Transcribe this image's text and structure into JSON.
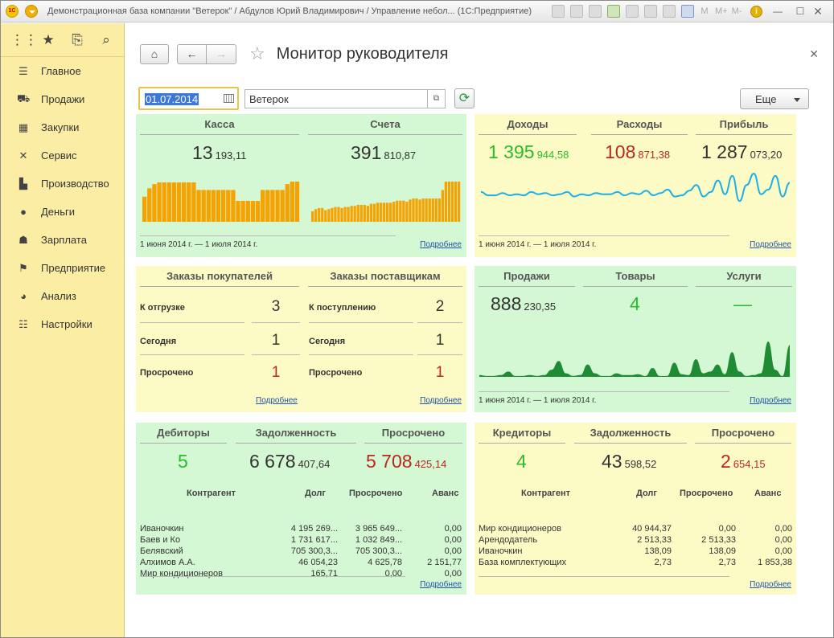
{
  "window": {
    "title": "Демонстрационная база компании \"Ветерок\" / Абдулов Юрий Владимирович / Управление небол... (1С:Предприятие)",
    "logo": "1С",
    "m_buttons": [
      "M",
      "M+",
      "M-"
    ]
  },
  "sidebar": {
    "top_icons": [
      "apps-icon",
      "star-icon",
      "history-icon",
      "search-icon"
    ],
    "items": [
      {
        "label": "Главное",
        "icon": "menu-icon"
      },
      {
        "label": "Продажи",
        "icon": "basket-icon"
      },
      {
        "label": "Закупки",
        "icon": "cart-icon"
      },
      {
        "label": "Сервис",
        "icon": "tools-icon"
      },
      {
        "label": "Производство",
        "icon": "factory-icon"
      },
      {
        "label": "Деньги",
        "icon": "ruble-icon"
      },
      {
        "label": "Зарплата",
        "icon": "people-icon"
      },
      {
        "label": "Предприятие",
        "icon": "flag-icon"
      },
      {
        "label": "Анализ",
        "icon": "pie-icon"
      },
      {
        "label": "Настройки",
        "icon": "settings-icon"
      }
    ]
  },
  "page": {
    "title": "Монитор руководителя"
  },
  "toolbar": {
    "date": "01.07.2014",
    "organization": "Ветерок",
    "more_label": "Еще"
  },
  "common": {
    "period": "1 июня 2014 г. — 1 июля 2014 г.",
    "details": "Подробнее"
  },
  "cash": {
    "kassa": {
      "title": "Касса",
      "int": "13",
      "frac": "193,11"
    },
    "accounts": {
      "title": "Счета",
      "int": "391",
      "frac": "810,87"
    },
    "kassa_bars": [
      30,
      40,
      45,
      47,
      47,
      47,
      47,
      47,
      47,
      47,
      47,
      38,
      38,
      38,
      38,
      38,
      38,
      38,
      38,
      25,
      25,
      25,
      25,
      25,
      38,
      38,
      38,
      38,
      38,
      45,
      48,
      48
    ],
    "accounts_bars": [
      10,
      12,
      13,
      13,
      11,
      12,
      13,
      14,
      14,
      13,
      14,
      14,
      15,
      15,
      16,
      16,
      16,
      15,
      17,
      17,
      18,
      18,
      18,
      18,
      18,
      19,
      20,
      20,
      20,
      19,
      21,
      22,
      22,
      21,
      22,
      22,
      22,
      22,
      22,
      22,
      30,
      38,
      38,
      38,
      38,
      38
    ]
  },
  "finance": {
    "income": {
      "title": "Доходы",
      "int": "1 395",
      "frac": "944,58"
    },
    "expense": {
      "title": "Расходы",
      "int": "108",
      "frac": "871,38"
    },
    "profit": {
      "title": "Прибыль",
      "int": "1 287",
      "frac": "073,20"
    },
    "line": [
      12,
      9,
      9,
      11,
      9,
      10,
      9,
      12,
      10,
      11,
      9,
      10,
      12,
      8,
      10,
      9,
      11,
      10,
      10,
      12,
      9,
      11,
      10,
      13,
      9,
      11,
      14,
      8,
      9,
      13,
      18,
      8,
      12,
      22,
      10,
      26,
      4,
      18,
      28,
      10,
      14,
      26,
      8,
      20
    ]
  },
  "orders": {
    "customers": {
      "title": "Заказы покупателей",
      "rows": [
        {
          "label": "К отгрузке",
          "value": "3"
        },
        {
          "label": "Сегодня",
          "value": "1"
        },
        {
          "label": "Просрочено",
          "value": "1"
        }
      ]
    },
    "suppliers": {
      "title": "Заказы поставщикам",
      "rows": [
        {
          "label": "К поступлению",
          "value": "2"
        },
        {
          "label": "Сегодня",
          "value": "1"
        },
        {
          "label": "Просрочено",
          "value": "1"
        }
      ]
    }
  },
  "sales": {
    "sales": {
      "title": "Продажи",
      "int": "888",
      "frac": "230,35"
    },
    "goods": {
      "title": "Товары",
      "value": "4"
    },
    "services": {
      "title": "Услуги",
      "value": "—"
    },
    "area": [
      2,
      1,
      1,
      2,
      6,
      1,
      1,
      2,
      1,
      2,
      8,
      18,
      4,
      1,
      2,
      14,
      4,
      1,
      1,
      4,
      2,
      2,
      3,
      1,
      10,
      1,
      1,
      16,
      3,
      2,
      20,
      4,
      6,
      14,
      3,
      28,
      6,
      1,
      2,
      4,
      40,
      8,
      1,
      36
    ]
  },
  "debtors": {
    "debtors": {
      "title": "Дебиторы",
      "value": "5"
    },
    "debt": {
      "title": "Задолженность",
      "int": "6 678",
      "frac": "407,64"
    },
    "overdue": {
      "title": "Просрочено",
      "int": "5 708",
      "frac": "425,14"
    },
    "columns": [
      "Контрагент",
      "Долг",
      "Просрочено",
      "Аванс"
    ],
    "rows": [
      [
        "Иваночкин",
        "4 195 269...",
        "3 965 649...",
        "0,00"
      ],
      [
        "Баев и Ко",
        "1 731 617...",
        "1 032 849...",
        "0,00"
      ],
      [
        "Белявский",
        "705 300,3...",
        "705 300,3...",
        "0,00"
      ],
      [
        "Алхимов А.А.",
        "46 054,23",
        "4 625,78",
        "2 151,77"
      ],
      [
        "Мир кондиционеров",
        "165,71",
        "0,00",
        "0,00"
      ]
    ]
  },
  "creditors": {
    "creditors": {
      "title": "Кредиторы",
      "value": "4"
    },
    "debt": {
      "title": "Задолженность",
      "int": "43",
      "frac": "598,52"
    },
    "overdue": {
      "title": "Просрочено",
      "int": "2",
      "frac": "654,15"
    },
    "columns": [
      "Контрагент",
      "Долг",
      "Просрочено",
      "Аванс"
    ],
    "rows": [
      [
        "Мир кондиционеров",
        "40 944,37",
        "0,00",
        "0,00"
      ],
      [
        "Арендодатель",
        "2 513,33",
        "2 513,33",
        "0,00"
      ],
      [
        "Иваночкин",
        "138,09",
        "138,09",
        "0,00"
      ],
      [
        "База комплектующих",
        "2,73",
        "2,73",
        "1 853,38"
      ]
    ]
  },
  "colors": {
    "bars": "#f5a300",
    "line": "#1ab0e8",
    "area": "#1f8b35",
    "accent": "#2bbb2b",
    "danger": "#b9281f"
  }
}
